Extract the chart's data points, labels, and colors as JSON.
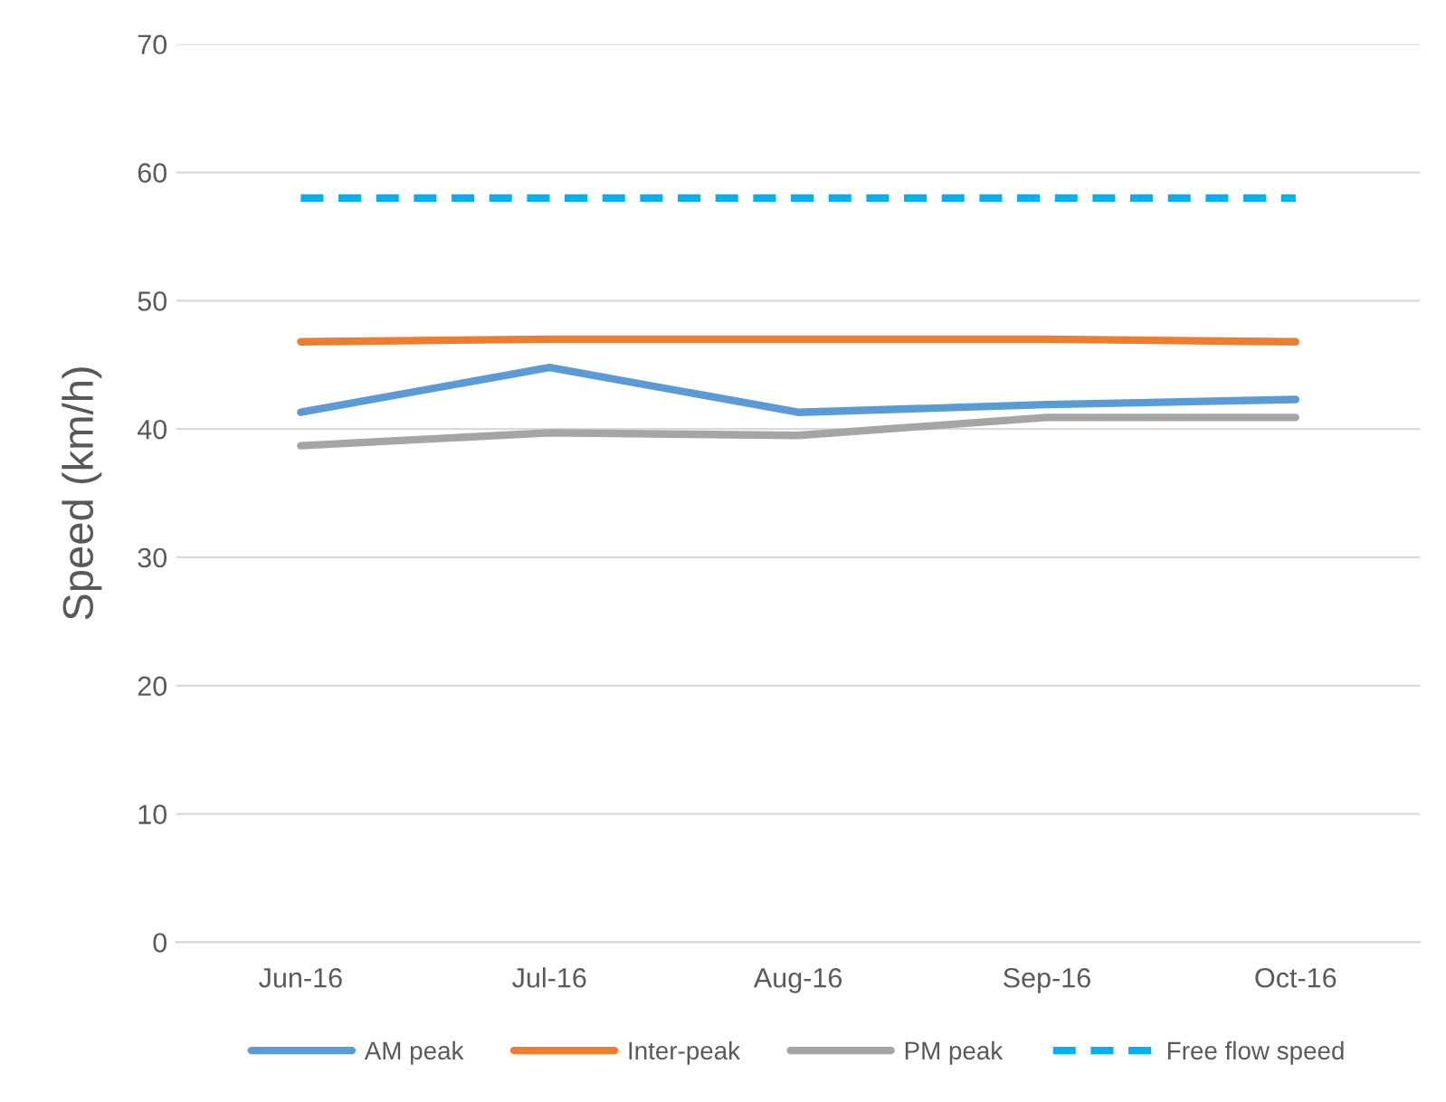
{
  "chart_data": {
    "type": "line",
    "ylabel": "Speed (km/h)",
    "categories": [
      "Jun-16",
      "Jul-16",
      "Aug-16",
      "Sep-16",
      "Oct-16"
    ],
    "series": [
      {
        "name": "AM peak",
        "color": "#5b9bd5",
        "values": [
          41.3,
          44.8,
          41.3,
          41.9,
          42.3
        ]
      },
      {
        "name": "Inter-peak",
        "color": "#ed7d31",
        "values": [
          46.8,
          47.0,
          47.0,
          47.0,
          46.8
        ]
      },
      {
        "name": "PM peak",
        "color": "#a5a5a5",
        "values": [
          38.7,
          39.7,
          39.5,
          40.9,
          40.9
        ]
      },
      {
        "name": "Free flow speed",
        "color": "#00b0f0",
        "values": [
          58.0,
          58.0,
          58.0,
          58.0,
          58.0
        ],
        "line_style": "dashed"
      }
    ],
    "ylim": [
      0,
      70
    ],
    "yticks": [
      0,
      10,
      20,
      30,
      40,
      50,
      60,
      70
    ],
    "grid": "y",
    "legend": "bottom",
    "marker": "none",
    "line_style": "solid"
  }
}
